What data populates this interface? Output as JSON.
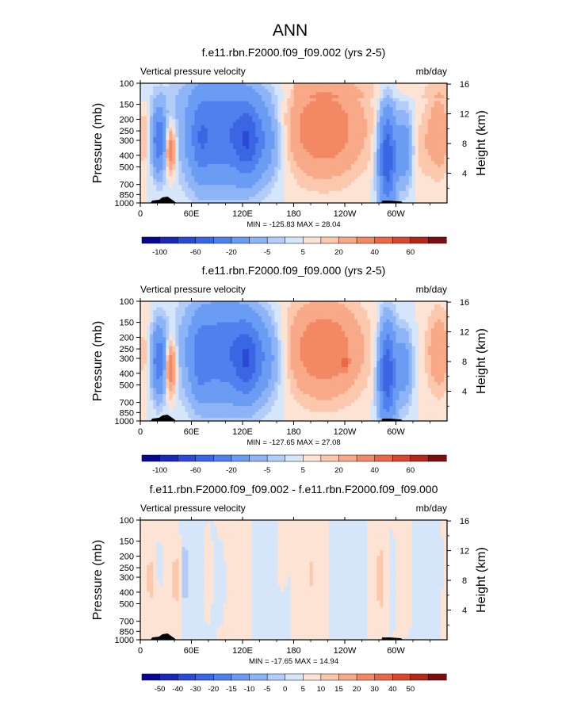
{
  "page_title": "ANN",
  "chart_data": [
    {
      "type": "heatmap",
      "title": "f.e11.rbn.F2000.f09_f09.002 (yrs 2-5)",
      "left_label": "Vertical pressure velocity",
      "right_label": "mb/day",
      "ylabel": "Pressure (mb)",
      "ylabel_right": "Height (km)",
      "x_ticks": [
        "0",
        "60E",
        "120E",
        "180",
        "120W",
        "60W"
      ],
      "x_tick_values": [
        0,
        60,
        120,
        180,
        240,
        300
      ],
      "xlim": [
        0,
        360
      ],
      "y_ticks": [
        "100",
        "150",
        "200",
        "250",
        "300",
        "400",
        "500",
        "700",
        "850",
        "1000"
      ],
      "y_tick_values": [
        100,
        150,
        200,
        250,
        300,
        400,
        500,
        700,
        850,
        1000
      ],
      "ylim": [
        100,
        1000
      ],
      "y_scale": "log",
      "y_right_ticks": [
        "4",
        "8",
        "12",
        "16"
      ],
      "y_right_tick_values": [
        4,
        8,
        12,
        16
      ],
      "stats": "MIN = -125.83  MAX =  28.04",
      "min": -125.83,
      "max": 28.04,
      "colorbar_labels": [
        "-100",
        "-60",
        "-20",
        "-5",
        "5",
        "20",
        "40",
        "60"
      ],
      "colorbar_label_bounds": [
        1,
        3,
        5,
        7,
        9,
        11,
        13,
        15
      ],
      "colorbar_colors": [
        "#08088f",
        "#1a28b8",
        "#2a4ad6",
        "#3a66e4",
        "#4f80ee",
        "#6b9cf4",
        "#8db4f7",
        "#b3ccf8",
        "#d6e6fa",
        "#fde3d4",
        "#fbc8ae",
        "#f8a988",
        "#f28964",
        "#ea6845",
        "#d74730",
        "#b5271b",
        "#7b0e10"
      ],
      "field": "control"
    },
    {
      "type": "heatmap",
      "title": "f.e11.rbn.F2000.f09_f09.000 (yrs 2-5)",
      "left_label": "Vertical pressure velocity",
      "right_label": "mb/day",
      "ylabel": "Pressure (mb)",
      "ylabel_right": "Height (km)",
      "x_ticks": [
        "0",
        "60E",
        "120E",
        "180",
        "120W",
        "60W"
      ],
      "x_tick_values": [
        0,
        60,
        120,
        180,
        240,
        300
      ],
      "xlim": [
        0,
        360
      ],
      "y_ticks": [
        "100",
        "150",
        "200",
        "250",
        "300",
        "400",
        "500",
        "700",
        "850",
        "1000"
      ],
      "y_tick_values": [
        100,
        150,
        200,
        250,
        300,
        400,
        500,
        700,
        850,
        1000
      ],
      "ylim": [
        100,
        1000
      ],
      "y_scale": "log",
      "y_right_ticks": [
        "4",
        "8",
        "12",
        "16"
      ],
      "y_right_tick_values": [
        4,
        8,
        12,
        16
      ],
      "stats": "MIN = -127.65  MAX =  27.08",
      "min": -127.65,
      "max": 27.08,
      "colorbar_labels": [
        "-100",
        "-60",
        "-20",
        "-5",
        "5",
        "20",
        "40",
        "60"
      ],
      "colorbar_label_bounds": [
        1,
        3,
        5,
        7,
        9,
        11,
        13,
        15
      ],
      "colorbar_colors": [
        "#08088f",
        "#1a28b8",
        "#2a4ad6",
        "#3a66e4",
        "#4f80ee",
        "#6b9cf4",
        "#8db4f7",
        "#b3ccf8",
        "#d6e6fa",
        "#fde3d4",
        "#fbc8ae",
        "#f8a988",
        "#f28964",
        "#ea6845",
        "#d74730",
        "#b5271b",
        "#7b0e10"
      ],
      "field": "test"
    },
    {
      "type": "heatmap",
      "title": "f.e11.rbn.F2000.f09_f09.002 - f.e11.rbn.F2000.f09_f09.000",
      "left_label": "Vertical pressure velocity",
      "right_label": "mb/day",
      "ylabel": "Pressure (mb)",
      "ylabel_right": "Height (km)",
      "x_ticks": [
        "0",
        "60E",
        "120E",
        "180",
        "120W",
        "60W"
      ],
      "x_tick_values": [
        0,
        60,
        120,
        180,
        240,
        300
      ],
      "xlim": [
        0,
        360
      ],
      "y_ticks": [
        "100",
        "150",
        "200",
        "250",
        "300",
        "400",
        "500",
        "700",
        "850",
        "1000"
      ],
      "y_tick_values": [
        100,
        150,
        200,
        250,
        300,
        400,
        500,
        700,
        850,
        1000
      ],
      "ylim": [
        100,
        1000
      ],
      "y_scale": "log",
      "y_right_ticks": [
        "4",
        "8",
        "12",
        "16"
      ],
      "y_right_tick_values": [
        4,
        8,
        12,
        16
      ],
      "stats": "MIN = -17.65  MAX =  14.94",
      "min": -17.65,
      "max": 14.94,
      "colorbar_labels": [
        "-50",
        "-40",
        "-30",
        "-20",
        "-15",
        "-10",
        "-5",
        "0",
        "5",
        "10",
        "15",
        "20",
        "30",
        "40",
        "50"
      ],
      "colorbar_label_bounds": [
        1,
        2,
        3,
        4,
        5,
        6,
        7,
        8,
        9,
        10,
        11,
        12,
        13,
        14,
        15
      ],
      "colorbar_colors": [
        "#08088f",
        "#1a28b8",
        "#2a4ad6",
        "#3a66e4",
        "#4f80ee",
        "#6b9cf4",
        "#8db4f7",
        "#b3ccf8",
        "#d6e6fa",
        "#fde3d4",
        "#fbc8ae",
        "#f8a988",
        "#f28964",
        "#ea6845",
        "#d74730",
        "#b5271b",
        "#7b0e10"
      ],
      "field": "diff"
    }
  ]
}
